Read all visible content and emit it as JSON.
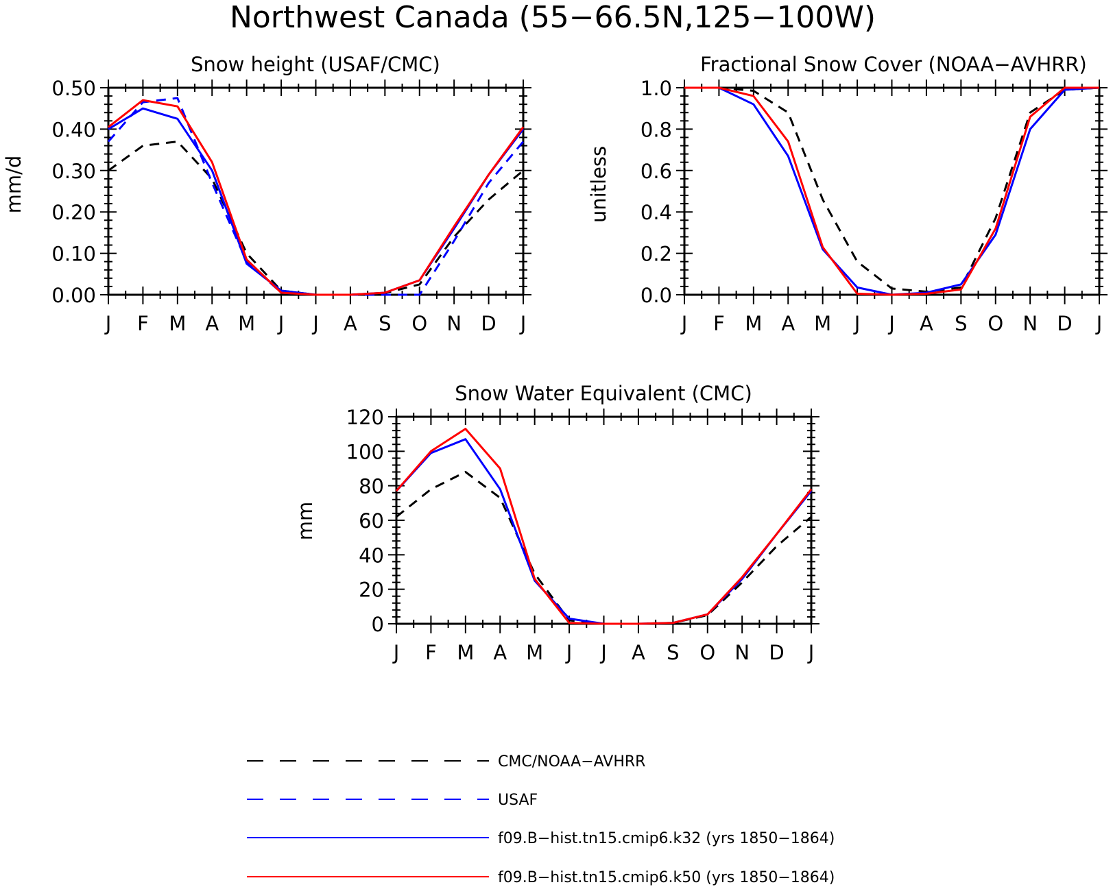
{
  "figure": {
    "title": "Northwest Canada (55−66.5N,125−100W)"
  },
  "legend": [
    {
      "key": "obs",
      "label": "CMC/NOAA−AVHRR",
      "color": "#000000",
      "dash": true
    },
    {
      "key": "usaf",
      "label": "USAF",
      "color": "#0000ff",
      "dash": true
    },
    {
      "key": "k32",
      "label": "f09.B−hist.tn15.cmip6.k32 (yrs 1850−1864)",
      "color": "#0000ff",
      "dash": false
    },
    {
      "key": "k50",
      "label": "f09.B−hist.tn15.cmip6.k50 (yrs 1850−1864)",
      "color": "#ff0000",
      "dash": false
    }
  ],
  "chart_data": [
    {
      "type": "line",
      "title": "Snow height (USAF/CMC)",
      "xlabel": "",
      "ylabel": "mm/d",
      "categories": [
        "J",
        "F",
        "M",
        "A",
        "M",
        "J",
        "J",
        "A",
        "S",
        "O",
        "N",
        "D",
        "J"
      ],
      "ylim": [
        0,
        0.5
      ],
      "yticks": [
        "0.00",
        "0.10",
        "0.20",
        "0.30",
        "0.40",
        "0.50"
      ],
      "series": [
        {
          "key": "obs",
          "values": [
            0.3,
            0.36,
            0.37,
            0.28,
            0.1,
            0.01,
            0.0,
            0.0,
            0.004,
            0.025,
            0.14,
            0.23,
            0.3
          ]
        },
        {
          "key": "usaf",
          "values": [
            0.37,
            0.465,
            0.475,
            0.27,
            0.08,
            0.005,
            0.0,
            0.0,
            0.0,
            0.0,
            0.13,
            0.27,
            0.37
          ]
        },
        {
          "key": "k32",
          "values": [
            0.4,
            0.45,
            0.425,
            0.3,
            0.075,
            0.01,
            0.0,
            0.0,
            0.005,
            0.035,
            0.16,
            0.29,
            0.4
          ]
        },
        {
          "key": "k50",
          "values": [
            0.405,
            0.47,
            0.455,
            0.32,
            0.085,
            0.005,
            0.0,
            0.0,
            0.005,
            0.035,
            0.165,
            0.29,
            0.405
          ]
        }
      ]
    },
    {
      "type": "line",
      "title": "Fractional Snow Cover (NOAA−AVHRR)",
      "xlabel": "",
      "ylabel": "unitless",
      "categories": [
        "J",
        "F",
        "M",
        "A",
        "M",
        "J",
        "J",
        "A",
        "S",
        "O",
        "N",
        "D",
        "J"
      ],
      "ylim": [
        0,
        1
      ],
      "yticks": [
        "0.0",
        "0.2",
        "0.4",
        "0.6",
        "0.8",
        "1.0"
      ],
      "series": [
        {
          "key": "obs",
          "values": [
            1.0,
            1.0,
            0.985,
            0.88,
            0.46,
            0.16,
            0.03,
            0.015,
            0.035,
            0.37,
            0.88,
            0.99,
            1.0
          ]
        },
        {
          "key": "k32",
          "values": [
            1.0,
            1.0,
            0.92,
            0.67,
            0.22,
            0.035,
            0.0,
            0.01,
            0.05,
            0.29,
            0.8,
            0.99,
            1.0
          ]
        },
        {
          "key": "k50",
          "values": [
            1.0,
            1.0,
            0.96,
            0.74,
            0.23,
            0.005,
            0.0,
            0.005,
            0.025,
            0.32,
            0.86,
            1.0,
            1.0
          ]
        }
      ]
    },
    {
      "type": "line",
      "title": "Snow Water Equivalent (CMC)",
      "xlabel": "",
      "ylabel": "mm",
      "categories": [
        "J",
        "F",
        "M",
        "A",
        "M",
        "J",
        "J",
        "A",
        "S",
        "O",
        "N",
        "D",
        "J"
      ],
      "ylim": [
        0,
        120
      ],
      "yticks": [
        "0",
        "20",
        "40",
        "60",
        "80",
        "100",
        "120"
      ],
      "series": [
        {
          "key": "obs",
          "values": [
            62,
            78,
            88,
            73,
            29,
            2,
            0,
            0,
            0.5,
            5,
            24,
            45,
            62
          ]
        },
        {
          "key": "k32",
          "values": [
            77,
            99,
            107,
            78,
            25,
            3,
            0,
            0,
            0.5,
            5.5,
            26,
            52,
            77
          ]
        },
        {
          "key": "k50",
          "values": [
            77,
            100,
            113,
            90,
            26,
            0.5,
            0,
            0,
            0.5,
            5.5,
            27,
            52,
            78
          ]
        }
      ]
    }
  ]
}
